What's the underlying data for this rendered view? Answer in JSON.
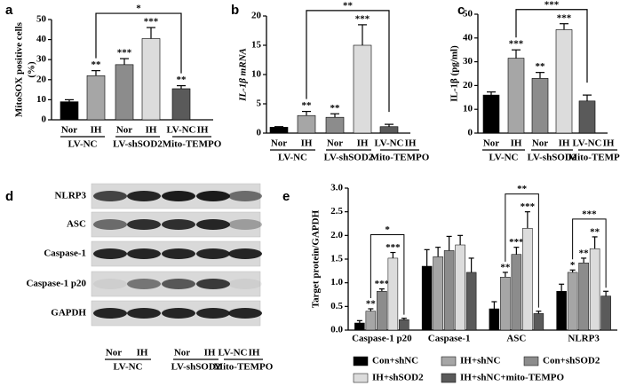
{
  "chart_data": [
    {
      "type": "bar",
      "panel": "a",
      "ylabel": [
        "MitoSOX positive cells",
        "(%)"
      ],
      "categories": [
        "Nor",
        "IH",
        "Nor",
        "IH",
        "LV-NC"
      ],
      "extra_label": "IH",
      "groups": [
        "LV-NC",
        "LV-shSOD2",
        "Mito-TEMPO"
      ],
      "values": [
        9,
        22,
        27.5,
        40.5,
        15.5
      ],
      "errors": [
        1,
        2.5,
        3,
        5.5,
        1.5
      ],
      "colors": [
        "#000000",
        "#a6a6a6",
        "#8c8c8c",
        "#dcdcdc",
        "#5a5a5a"
      ],
      "stars": [
        null,
        "**",
        "***",
        "***",
        "**"
      ],
      "bracket": "*",
      "ylim": [
        0,
        50
      ],
      "yticks": [
        0,
        10,
        20,
        30,
        40,
        50
      ]
    },
    {
      "type": "bar",
      "panel": "b",
      "ylabel": [
        "IL-1β mRNA"
      ],
      "categories": [
        "Nor",
        "IH",
        "Nor",
        "IH",
        "LV-NC"
      ],
      "extra_label": "IH",
      "groups": [
        "LV-NC",
        "LV-shSOD2",
        "Mito-TEMPO"
      ],
      "values": [
        1,
        3,
        2.7,
        15,
        1.1
      ],
      "errors": [
        0.1,
        0.7,
        0.6,
        3.5,
        0.4
      ],
      "colors": [
        "#000000",
        "#a6a6a6",
        "#8c8c8c",
        "#dcdcdc",
        "#5a5a5a"
      ],
      "stars": [
        null,
        "**",
        "**",
        "***",
        null
      ],
      "bracket": "**",
      "ylim": [
        0,
        20
      ],
      "yticks": [
        0,
        5,
        10,
        15,
        20
      ]
    },
    {
      "type": "bar",
      "panel": "c",
      "ylabel": [
        "IL-1β (pg/ml)"
      ],
      "categories": [
        "Nor",
        "IH",
        "Nor",
        "IH",
        "LV-NC"
      ],
      "extra_label": "IH",
      "groups": [
        "LV-NC",
        "LV-shSOD2",
        "Mito-TEMPO"
      ],
      "values": [
        16,
        31.5,
        23,
        43.5,
        13.5
      ],
      "errors": [
        1.3,
        3.5,
        2.5,
        2.5,
        2.5
      ],
      "colors": [
        "#000000",
        "#a6a6a6",
        "#8c8c8c",
        "#dcdcdc",
        "#5a5a5a"
      ],
      "stars": [
        null,
        "***",
        "**",
        "***",
        null
      ],
      "bracket": "***",
      "ylim": [
        0,
        50
      ],
      "yticks": [
        0,
        10,
        20,
        30,
        40,
        50
      ]
    },
    {
      "type": "blot",
      "panel": "d",
      "rows": [
        "NLRP3",
        "ASC",
        "Caspase-1",
        "Caspase-1 p20",
        "GAPDH"
      ],
      "categories": [
        "Nor",
        "IH",
        "Nor",
        "IH",
        "LV-NC"
      ],
      "extra_label": "IH",
      "groups": [
        "LV-NC",
        "LV-shSOD2",
        "Mito-TEMPO"
      ]
    },
    {
      "type": "grouped_bar",
      "panel": "e",
      "ylabel": "Target protein/GAPDH",
      "categories": [
        "Caspase-1 p20",
        "Caspase-1",
        "ASC",
        "NLRP3"
      ],
      "series": [
        {
          "name": "Con+shNC",
          "color": "#000000",
          "values": [
            0.15,
            1.35,
            0.45,
            0.82
          ],
          "errors": [
            0.05,
            0.35,
            0.15,
            0.15
          ],
          "stars": [
            null,
            null,
            null,
            null
          ]
        },
        {
          "name": "IH+shNC",
          "color": "#a6a6a6",
          "values": [
            0.4,
            1.55,
            1.12,
            1.22
          ],
          "errors": [
            0.05,
            0.2,
            0.1,
            0.05
          ],
          "stars": [
            "**",
            null,
            "**",
            "*"
          ]
        },
        {
          "name": "Con+shSOD2",
          "color": "#8c8c8c",
          "values": [
            0.82,
            1.68,
            1.6,
            1.42
          ],
          "errors": [
            0.05,
            0.3,
            0.15,
            0.1
          ],
          "stars": [
            "***",
            null,
            "***",
            "**"
          ]
        },
        {
          "name": "IH+shSOD2",
          "color": "#dcdcdc",
          "values": [
            1.52,
            1.8,
            2.15,
            1.72
          ],
          "errors": [
            0.12,
            0.2,
            0.35,
            0.25
          ],
          "stars": [
            "***",
            null,
            "***",
            "**"
          ]
        },
        {
          "name": "IH+shNC+mito-TEMPO",
          "color": "#5a5a5a",
          "values": [
            0.22,
            1.22,
            0.35,
            0.72
          ],
          "errors": [
            0.03,
            0.3,
            0.05,
            0.1
          ],
          "stars": [
            null,
            null,
            null,
            null
          ]
        }
      ],
      "brackets": [
        "*",
        null,
        "**",
        "***"
      ],
      "ylim": [
        0,
        3
      ],
      "yticks": [
        {
          "value": 0,
          "label": "0.0"
        },
        {
          "value": 0.5,
          "label": "0.5"
        },
        {
          "value": 1,
          "label": "1.0"
        },
        {
          "value": 1.5,
          "label": "1.5"
        },
        {
          "value": 2,
          "label": "2.0"
        },
        {
          "value": 2.5,
          "label": "2.5"
        },
        {
          "value": 3,
          "label": "3.0"
        }
      ]
    }
  ]
}
